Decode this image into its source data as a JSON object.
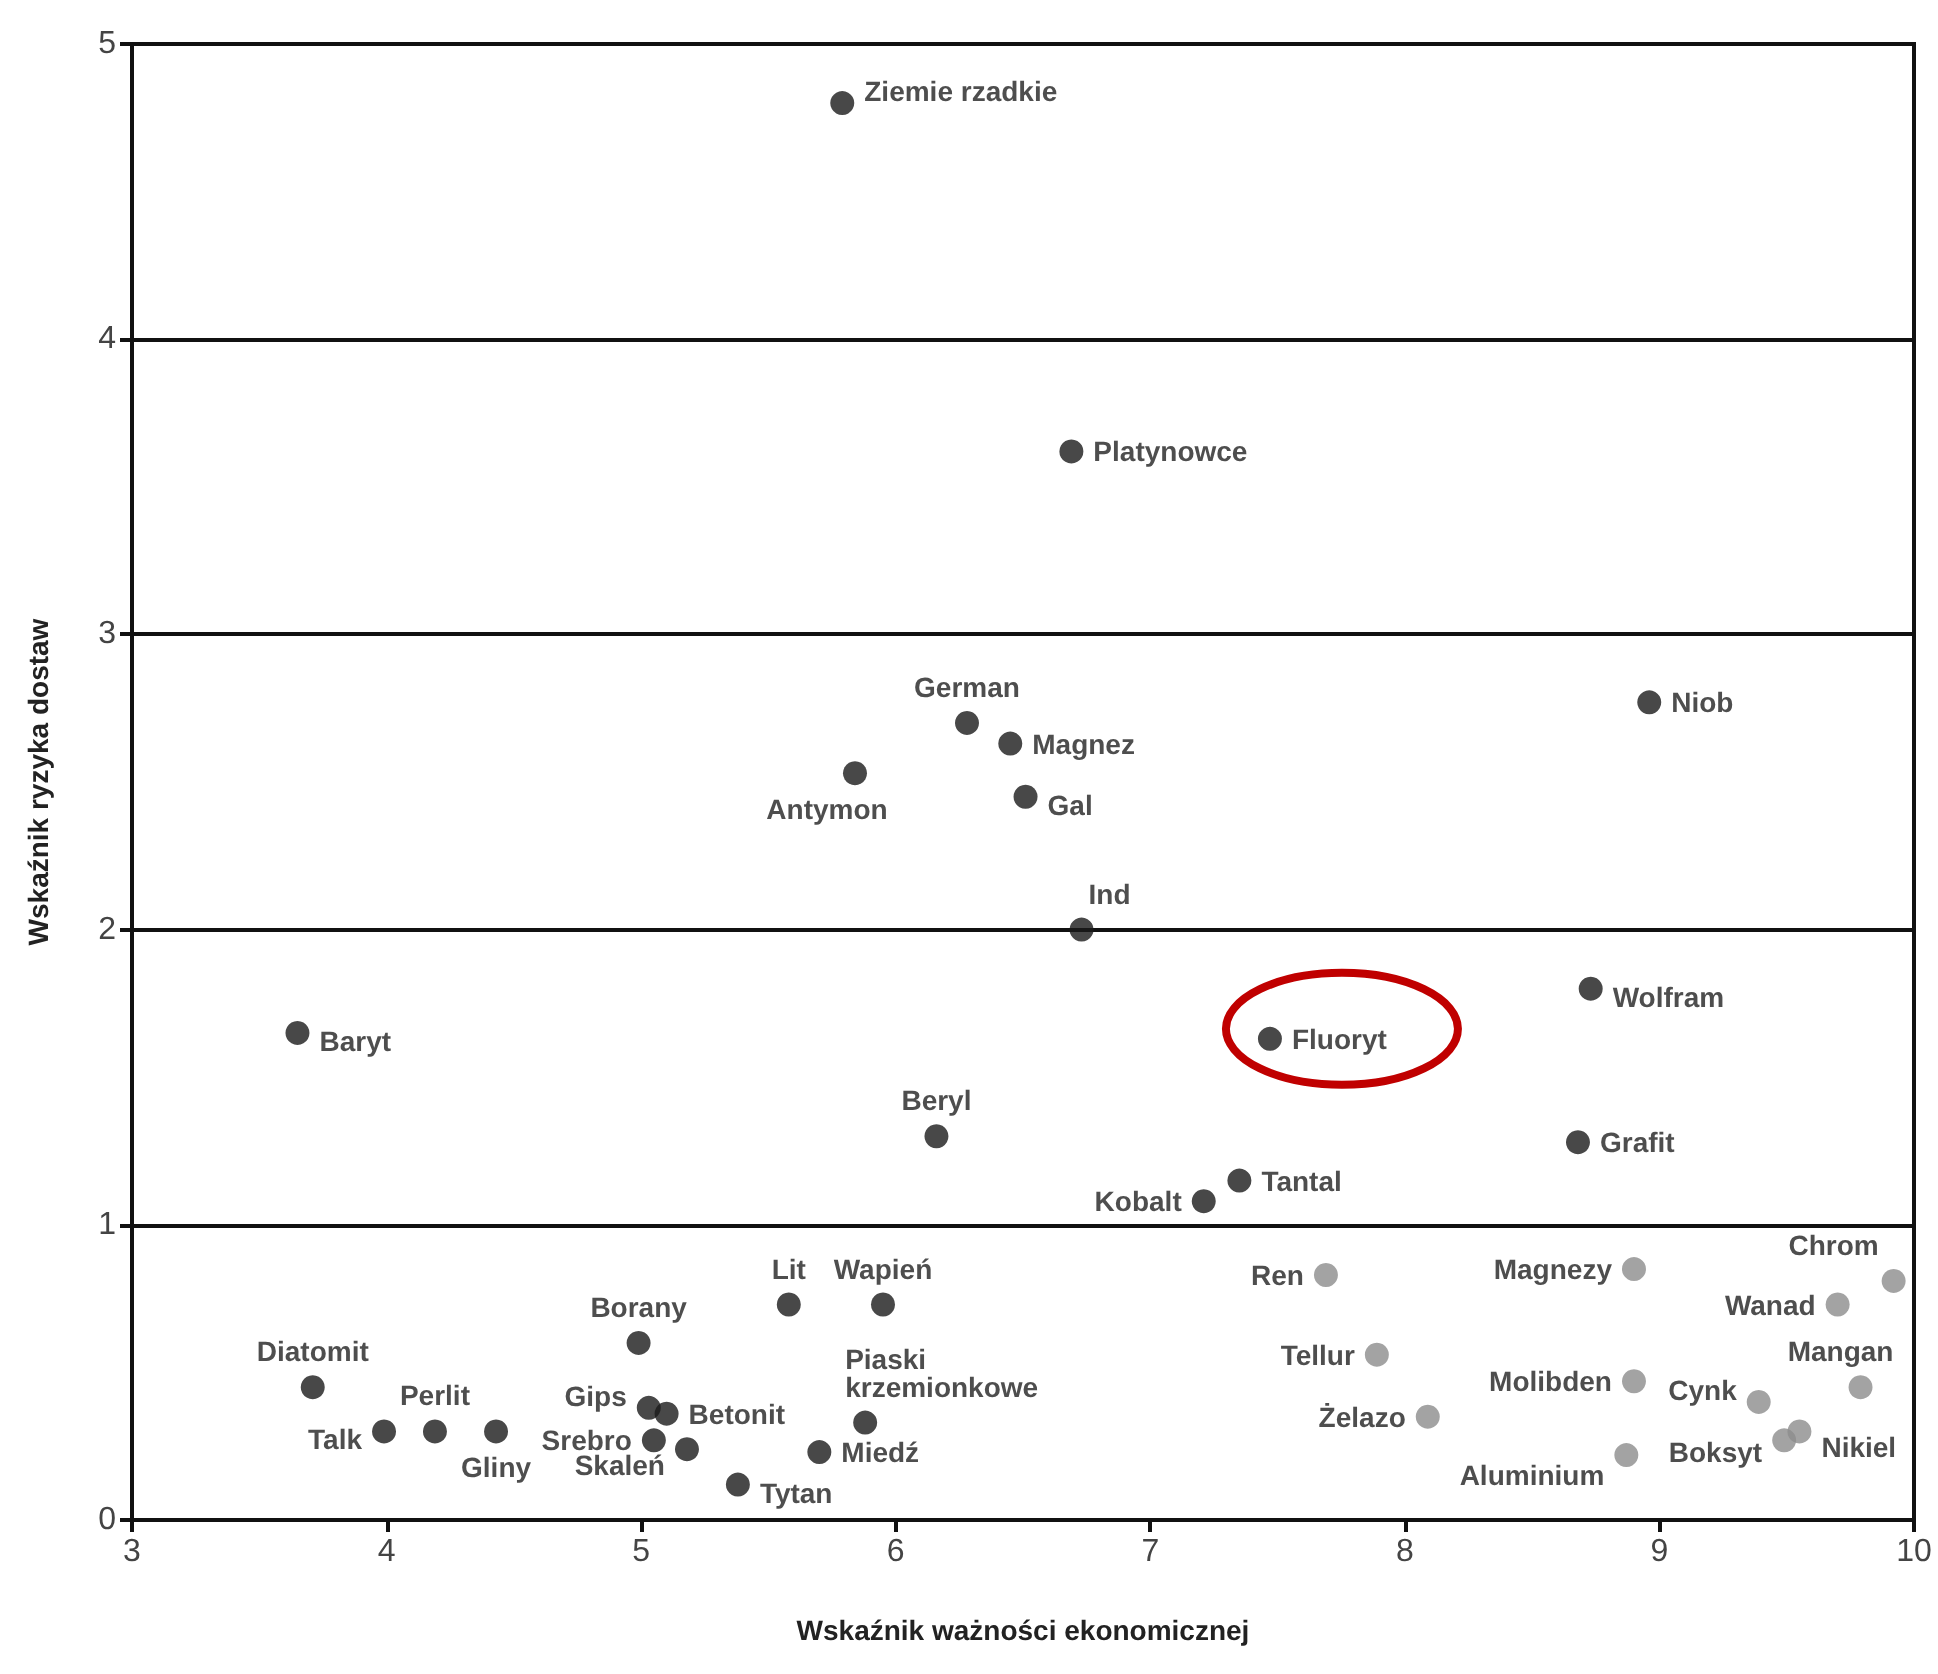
{
  "chart_data": {
    "type": "scatter",
    "xlabel": "Wskaźnik ważności ekonomicznej",
    "ylabel": "Wskaźnik ryzyka dostaw",
    "xlim": [
      3,
      10
    ],
    "xticks": [
      3,
      4,
      5,
      6,
      7,
      8,
      9,
      10
    ],
    "ylim": [
      0,
      5
    ],
    "yticks": [
      0,
      1,
      2,
      3,
      4,
      5
    ],
    "grid": "y",
    "marker": "circle",
    "series": [
      {
        "color": "#1a1a1a",
        "x": [
          5.79,
          6.69,
          6.28,
          6.45,
          5.84,
          6.51,
          8.96,
          6.73,
          8.73,
          3.65,
          7.47,
          8.68,
          6.16,
          7.35,
          7.21,
          5.58,
          5.95,
          4.99,
          3.71,
          4.19,
          3.99,
          4.43,
          5.03,
          5.1,
          5.05,
          5.18,
          5.38,
          5.7,
          5.88
        ],
        "values": [
          4.8,
          3.62,
          2.7,
          2.63,
          2.53,
          2.45,
          2.77,
          2.0,
          1.8,
          1.65,
          1.63,
          1.28,
          1.3,
          1.15,
          1.08,
          0.73,
          0.73,
          0.6,
          0.45,
          0.3,
          0.3,
          0.3,
          0.38,
          0.36,
          0.27,
          0.24,
          0.12,
          0.23,
          0.33
        ],
        "value_labels": [
          "Ziemie rzadkie",
          "Platynowce",
          "German",
          "Magnez",
          "Antymon",
          "Gal",
          "Niob",
          "Ind",
          "Wolfram",
          "Baryt",
          "Fluoryt",
          "Grafit",
          "Beryl",
          "Tantal",
          "Kobalt",
          "Lit",
          "Wapień",
          "Borany",
          "Diatomit",
          "Perlit",
          "Talk",
          "Gliny",
          "Gips",
          "Betonit",
          "Srebro",
          "Skaleń",
          "Tytan",
          "Miedź",
          "Piaski krzemionkowe"
        ]
      },
      {
        "color": "#8c8c8c",
        "x": [
          7.69,
          8.9,
          9.92,
          9.7,
          7.89,
          8.9,
          9.79,
          9.39,
          8.09,
          8.87,
          9.49,
          9.55
        ],
        "values": [
          0.83,
          0.85,
          0.81,
          0.73,
          0.56,
          0.47,
          0.45,
          0.4,
          0.35,
          0.22,
          0.27,
          0.3
        ],
        "value_labels": [
          "Ren",
          "Magnezy",
          "Chrom",
          "Wanad",
          "Tellur",
          "Molibden",
          "Mangan",
          "Cynk",
          "Żelazo",
          "Aluminium",
          "Boksyt",
          "Nikiel"
        ]
      }
    ]
  }
}
